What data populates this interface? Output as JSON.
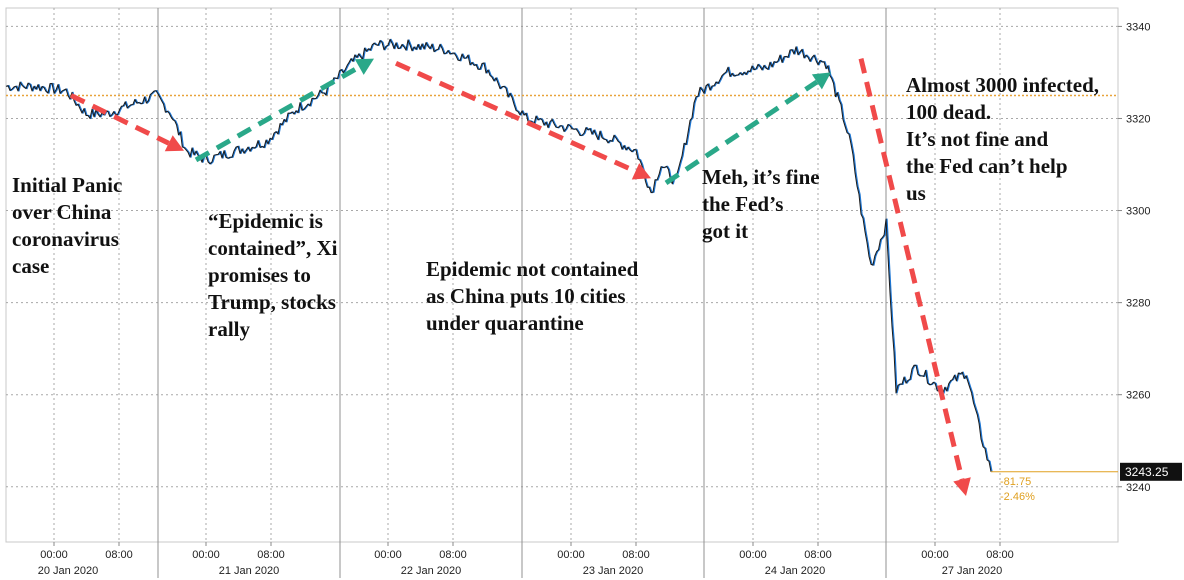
{
  "chart_data": {
    "type": "line",
    "title": "",
    "xlabel": "",
    "ylabel": "",
    "ylim": [
      3228,
      3344
    ],
    "y_ticks": [
      3240,
      3260,
      3280,
      3300,
      3320,
      3340
    ],
    "x_day_labels": [
      "20 Jan 2020",
      "21 Jan 2020",
      "22 Jan 2020",
      "23 Jan 2020",
      "24 Jan 2020",
      "27 Jan 2020"
    ],
    "x_time_labels": [
      "00:00",
      "08:00",
      "00:00",
      "08:00",
      "00:00",
      "08:00",
      "00:00",
      "08:00",
      "00:00",
      "08:00",
      "00:00",
      "08:00"
    ],
    "grid": true,
    "reference_line": 3325,
    "series": [
      {
        "name": "",
        "color": "#1a1a1a",
        "highlight_color": "#1f77d4",
        "x": [
          0,
          30,
          60,
          80,
          100,
          125,
          150,
          165,
          180,
          200,
          230,
          260,
          290,
          320,
          345,
          370,
          400,
          440,
          480,
          520,
          560,
          600,
          630,
          645,
          655,
          670,
          690,
          720,
          760,
          790,
          820,
          835,
          845,
          855,
          865,
          880,
          890,
          910,
          935,
          960,
          975,
          985
        ],
        "values": [
          3327,
          3327,
          3326,
          3321,
          3321,
          3323,
          3325,
          3321,
          3313,
          3311,
          3313,
          3315,
          3322,
          3326,
          3332,
          3336,
          3336,
          3335,
          3331,
          3320,
          3318,
          3316,
          3313,
          3304,
          3310,
          3306,
          3325,
          3330,
          3331,
          3335,
          3332,
          3322,
          3314,
          3300,
          3288,
          3297,
          3261,
          3266,
          3261,
          3265,
          3251,
          3243.25
        ]
      }
    ],
    "last_value": "3243.25",
    "change_abs": "-81.75",
    "change_pct": "-2.46%",
    "arrows": [
      {
        "color": "red",
        "from": [
          65,
          3325
        ],
        "to": [
          178,
          3313
        ]
      },
      {
        "color": "green",
        "from": [
          190,
          3311
        ],
        "to": [
          368,
          3333
        ]
      },
      {
        "color": "red",
        "from": [
          390,
          3332
        ],
        "to": [
          645,
          3307
        ]
      },
      {
        "color": "green",
        "from": [
          660,
          3306
        ],
        "to": [
          825,
          3330
        ]
      },
      {
        "color": "red",
        "from": [
          855,
          3333
        ],
        "to": [
          960,
          3238
        ]
      }
    ],
    "annotations": [
      "Initial Panic\nover China\ncoronavirus\ncase",
      "“Epidemic is\ncontained”, Xi\npromises to\nTrump, stocks\nrally",
      "Epidemic not contained\nas China puts 10 cities\nunder quarantine",
      "Meh, it’s fine\nthe Fed’s\ngot it",
      "Almost 3000 infected,\n100 dead.\nIt’s not fine and\nthe Fed can’t help\nus"
    ]
  }
}
